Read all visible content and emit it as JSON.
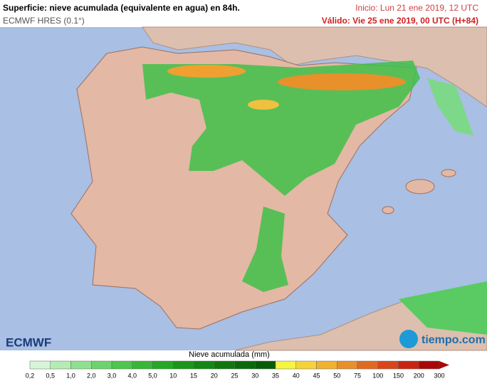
{
  "header": {
    "title": "Superficie: nieve acumulada (equivalente en agua) en 84h.",
    "model": "ECMWF HRES (0.1°)",
    "start": "Inicio: Lun 21 ene 2019, 12 UTC",
    "valid": "Válido: Vie 25 ene 2019, 00 UTC (H+84)"
  },
  "logos": {
    "left": "ECMWF",
    "right": "tiempo.com"
  },
  "legend": {
    "title": "Nieve acumulada (mm)",
    "labels": [
      "0,2",
      "0,5",
      "1,0",
      "2,0",
      "3,0",
      "4,0",
      "5,0",
      "10",
      "15",
      "20",
      "25",
      "30",
      "35",
      "40",
      "45",
      "50",
      "75",
      "100",
      "150",
      "200",
      "300"
    ],
    "colors": [
      "#d6f5d6",
      "#b4ecb4",
      "#8fe08f",
      "#6cd46c",
      "#4cc64c",
      "#36b836",
      "#25a825",
      "#1a961a",
      "#138613",
      "#0e780e",
      "#0a6a0a",
      "#075c07",
      "#f5f542",
      "#f5d23a",
      "#f0b030",
      "#e8902a",
      "#e06a22",
      "#d8461a",
      "#c82412",
      "#a80808"
    ]
  }
}
